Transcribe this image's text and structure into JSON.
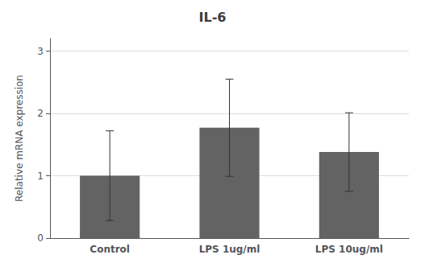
{
  "chart_data": {
    "type": "bar",
    "title": "IL-6",
    "categories": [
      "Control",
      "LPS 1ug/ml",
      "LPS 10ug/ml"
    ],
    "values": [
      1.0,
      1.77,
      1.38
    ],
    "errors": [
      0.72,
      0.78,
      0.63
    ],
    "color": "#636363",
    "ylabel": "Relative mRNA expression",
    "ylim": [
      0,
      3.2
    ],
    "yticks": [
      0,
      1,
      2,
      3
    ],
    "grid": true
  }
}
